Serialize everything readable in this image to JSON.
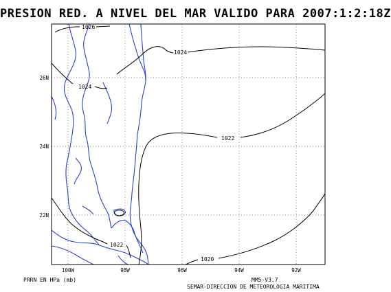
{
  "map": {
    "title": "PRESION RED. A NIVEL DEL MAR VALIDO PARA 2007:1:2:18Z",
    "lat_labels": [
      "26N",
      "24N",
      "22N"
    ],
    "lon_labels": [
      "100W",
      "98W",
      "96W",
      "94W",
      "92W"
    ],
    "isobars": [
      {
        "id": "1024-top",
        "label": "1026"
      },
      {
        "id": "1024-east",
        "label": "1024"
      },
      {
        "id": "1024-west",
        "label": "1024"
      },
      {
        "id": "1022-mid",
        "label": "1022"
      },
      {
        "id": "1022-south",
        "label": "1022"
      },
      {
        "id": "1020",
        "label": "1020"
      }
    ],
    "units_text": "PRRN EN HPa (mb)",
    "model_version": "MM5-V3.7",
    "credit": "SEMAR-DIRECCION DE METEOROLOGIA MARITIMA"
  },
  "colors": {
    "coastline": "#2a3fd6",
    "isobar": "#000000",
    "grid": "#8a8a8a",
    "frame": "#000000"
  }
}
